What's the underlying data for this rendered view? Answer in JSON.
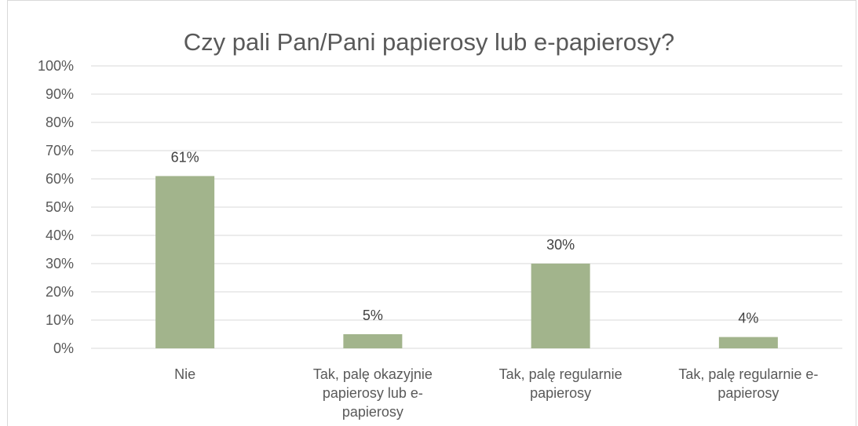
{
  "chart_data": {
    "type": "bar",
    "title": "Czy pali Pan/Pani papierosy lub e-papierosy?",
    "categories": [
      "Nie",
      "Tak, palę okazyjnie papierosy lub e-papierosy",
      "Tak, palę regularnie papierosy",
      "Tak, palę regularnie e-papierosy"
    ],
    "category_lines": [
      [
        "Nie"
      ],
      [
        "Tak, palę okazyjnie",
        "papierosy lub e-",
        "papierosy"
      ],
      [
        "Tak, palę regularnie",
        "papierosy"
      ],
      [
        "Tak, palę regularnie e-",
        "papierosy"
      ]
    ],
    "values": [
      61,
      5,
      30,
      4
    ],
    "data_labels": [
      "61%",
      "5%",
      "30%",
      "4%"
    ],
    "yticks": [
      "0%",
      "10%",
      "20%",
      "30%",
      "40%",
      "50%",
      "60%",
      "70%",
      "80%",
      "90%",
      "100%"
    ],
    "ylim": [
      0,
      100
    ],
    "grid": true,
    "legend": "none",
    "bar_color": "#a2b48c",
    "grid_color": "#d9d9d9"
  }
}
